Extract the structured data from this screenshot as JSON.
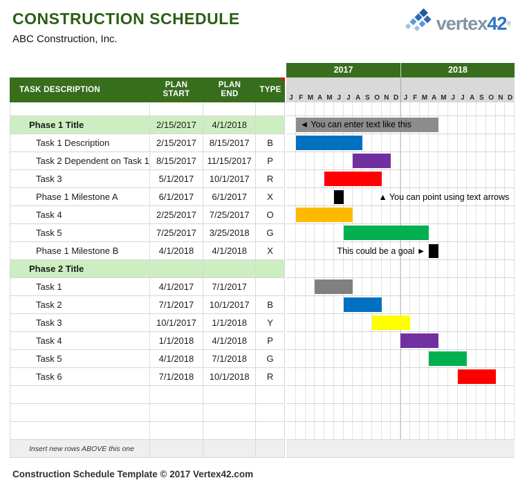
{
  "page": {
    "title": "CONSTRUCTION SCHEDULE",
    "subtitle": "ABC Construction, Inc.",
    "footer": "Construction Schedule Template © 2017 Vertex42.com"
  },
  "logo": {
    "brand_a": "vertex",
    "brand_b": "42",
    "registered": "®"
  },
  "table": {
    "headers": {
      "desc": "TASK DESCRIPTION",
      "start": "PLAN\nSTART",
      "end": "PLAN\nEND",
      "type": "TYPE"
    }
  },
  "chart": {
    "years": [
      "2017",
      "2018"
    ],
    "month_letters": [
      "J",
      "F",
      "M",
      "A",
      "M",
      "J",
      "J",
      "A",
      "S",
      "O",
      "N",
      "D"
    ]
  },
  "colors": {
    "header_green": "#376E1E",
    "phase_row_green": "#CDEEC0",
    "title_green": "#2C5E14",
    "band_gray": "#D9D9D9",
    "phase_bar": "#8C8C8C",
    "default_bar": "#808080",
    "types": {
      "B": "#0070C0",
      "P": "#7030A0",
      "R": "#FE0000",
      "O": "#FFB900",
      "G": "#00B050",
      "Y": "#FFFF00",
      "X": "#000000"
    }
  },
  "rows": [
    {
      "kind": "spacer",
      "desc": "",
      "start": "",
      "end": "",
      "type": ""
    },
    {
      "kind": "phase",
      "desc": "Phase 1 Title",
      "start": "2/15/2017",
      "end": "4/1/2018",
      "type": "",
      "bar_text": "◄ You can enter text like this"
    },
    {
      "kind": "task",
      "desc": "Task 1 Description",
      "start": "2/15/2017",
      "end": "8/15/2017",
      "type": "B"
    },
    {
      "kind": "task",
      "desc": "Task 2 Dependent on Task 1",
      "start": "8/15/2017",
      "end": "11/15/2017",
      "type": "P"
    },
    {
      "kind": "task",
      "desc": "Task 3",
      "start": "5/1/2017",
      "end": "10/1/2017",
      "type": "R"
    },
    {
      "kind": "task",
      "desc": "Phase 1 Milestone A",
      "start": "6/1/2017",
      "end": "6/1/2017",
      "type": "X",
      "annotation": {
        "text": "▲ You can point using text arrows",
        "side": "right",
        "month": 9.7
      }
    },
    {
      "kind": "task",
      "desc": "Task 4",
      "start": "2/25/2017",
      "end": "7/25/2017",
      "type": "O"
    },
    {
      "kind": "task",
      "desc": "Task 5",
      "start": "7/25/2017",
      "end": "3/25/2018",
      "type": "G"
    },
    {
      "kind": "task",
      "desc": "Phase 1 Milestone B",
      "start": "4/1/2018",
      "end": "4/1/2018",
      "type": "X",
      "annotation": {
        "text": "This could be a goal ►",
        "side": "left",
        "month": 15
      }
    },
    {
      "kind": "phase",
      "desc": "Phase 2 Title",
      "start": "",
      "end": "",
      "type": ""
    },
    {
      "kind": "task",
      "desc": "Task 1",
      "start": "4/1/2017",
      "end": "7/1/2017",
      "type": ""
    },
    {
      "kind": "task",
      "desc": "Task 2",
      "start": "7/1/2017",
      "end": "10/1/2017",
      "type": "B"
    },
    {
      "kind": "task",
      "desc": "Task 3",
      "start": "10/1/2017",
      "end": "1/1/2018",
      "type": "Y"
    },
    {
      "kind": "task",
      "desc": "Task 4",
      "start": "1/1/2018",
      "end": "4/1/2018",
      "type": "P"
    },
    {
      "kind": "task",
      "desc": "Task 5",
      "start": "4/1/2018",
      "end": "7/1/2018",
      "type": "G"
    },
    {
      "kind": "task",
      "desc": "Task 6",
      "start": "7/1/2018",
      "end": "10/1/2018",
      "type": "R"
    },
    {
      "kind": "empty",
      "desc": "",
      "start": "",
      "end": "",
      "type": ""
    },
    {
      "kind": "empty",
      "desc": "",
      "start": "",
      "end": "",
      "type": ""
    },
    {
      "kind": "empty",
      "desc": "",
      "start": "",
      "end": "",
      "type": ""
    },
    {
      "kind": "insert",
      "desc": "Insert new rows ABOVE this one",
      "start": "",
      "end": "",
      "type": ""
    }
  ]
}
